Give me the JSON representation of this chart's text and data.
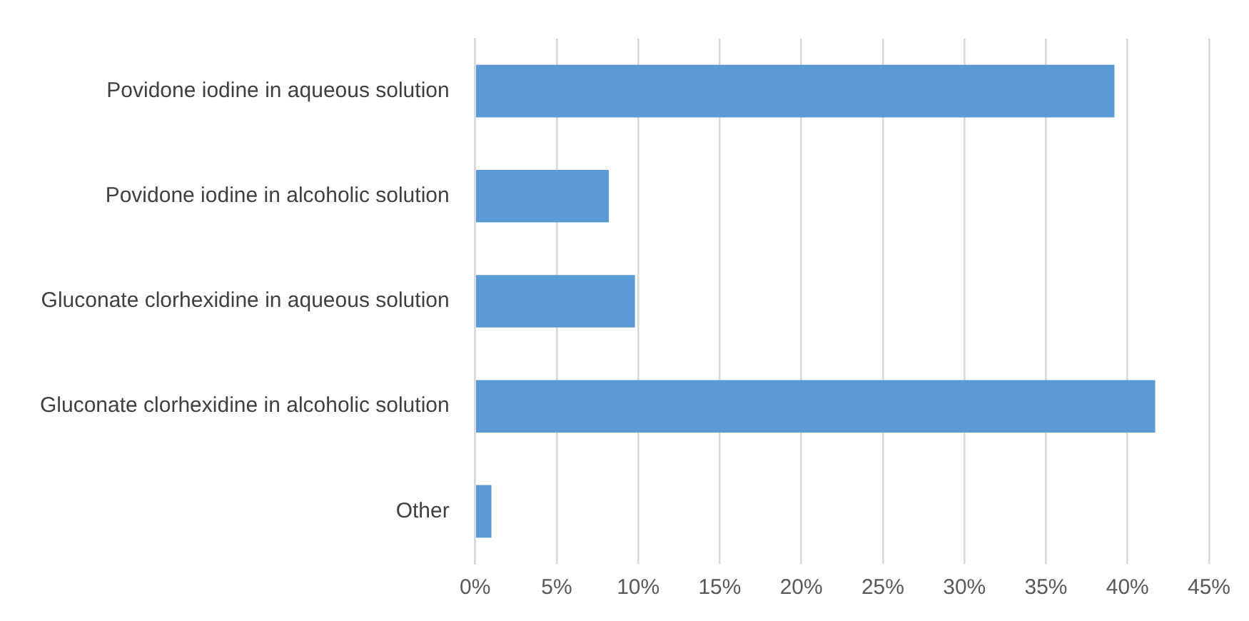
{
  "chart_data": {
    "type": "bar",
    "orientation": "horizontal",
    "categories": [
      "Povidone iodine in aqueous solution",
      "Povidone iodine in alcoholic solution",
      "Gluconate clorhexidine in aqueous solution",
      "Gluconate clorhexidine in alcoholic solution",
      "Other"
    ],
    "values": [
      39.2,
      8.2,
      9.8,
      41.7,
      1.0
    ],
    "color": "#5b9bd5",
    "xlim": [
      0,
      45
    ],
    "xticks": [
      {
        "value": 0,
        "label": "0%"
      },
      {
        "value": 5,
        "label": "5%"
      },
      {
        "value": 10,
        "label": "10%"
      },
      {
        "value": 15,
        "label": "15%"
      },
      {
        "value": 20,
        "label": "20%"
      },
      {
        "value": 25,
        "label": "25%"
      },
      {
        "value": 30,
        "label": "30%"
      },
      {
        "value": 35,
        "label": "35%"
      },
      {
        "value": 40,
        "label": "40%"
      },
      {
        "value": 45,
        "label": "45%"
      }
    ],
    "grid": "x",
    "legend": false
  }
}
